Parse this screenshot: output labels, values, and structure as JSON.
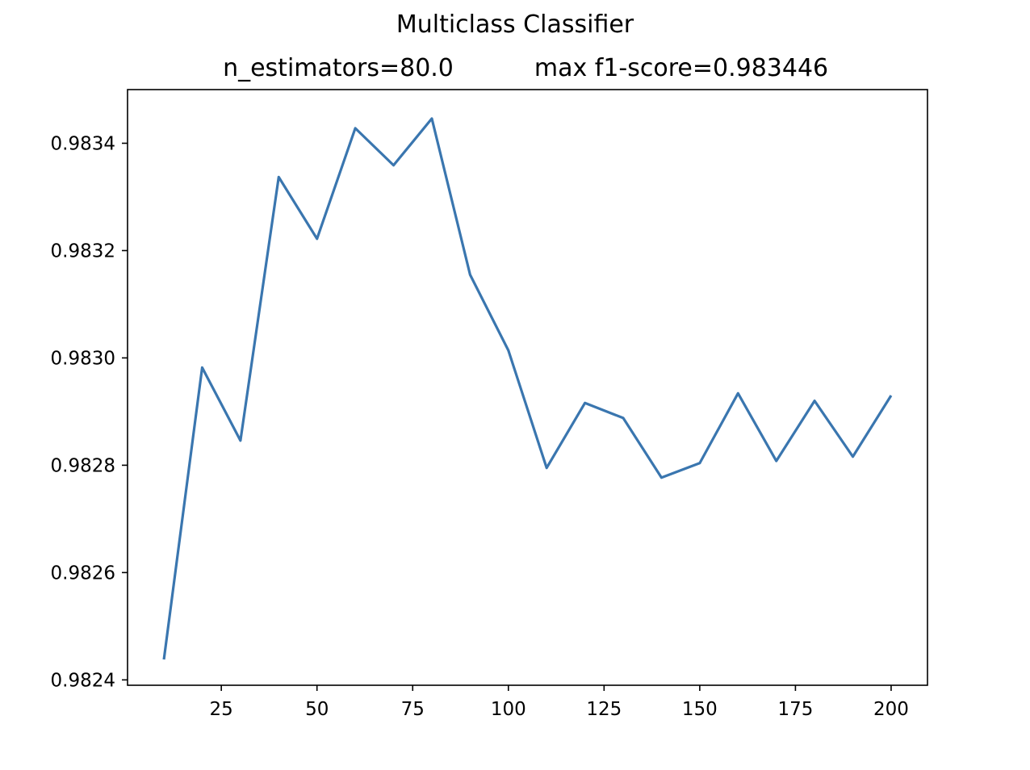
{
  "figure": {
    "suptitle": "Multiclass Classifier",
    "subtitle_left": "n_estimators=80.0",
    "subtitle_right": "max f1-score=0.983446"
  },
  "chart_data": {
    "type": "line",
    "title": "Multiclass Classifier",
    "subtitle": "n_estimators=80.0       max f1-score=0.983446",
    "xlabel": "",
    "ylabel": "",
    "xlim": [
      0.5,
      209.5
    ],
    "ylim": [
      0.98239,
      0.9835
    ],
    "xticks": [
      25,
      50,
      75,
      100,
      125,
      150,
      175,
      200
    ],
    "xtick_labels": [
      "25",
      "50",
      "75",
      "100",
      "125",
      "150",
      "175",
      "200"
    ],
    "yticks": [
      0.9824,
      0.9826,
      0.9828,
      0.983,
      0.9832,
      0.9834
    ],
    "ytick_labels": [
      "0.9824",
      "0.9826",
      "0.9828",
      "0.9830",
      "0.9832",
      "0.9834"
    ],
    "grid": false,
    "series": [
      {
        "color": "#3a76af",
        "x": [
          10,
          20,
          30,
          40,
          50,
          60,
          70,
          80,
          90,
          100,
          110,
          120,
          130,
          140,
          150,
          160,
          170,
          180,
          190,
          200
        ],
        "values": [
          0.982438,
          0.982982,
          0.982846,
          0.983337,
          0.983222,
          0.983428,
          0.983359,
          0.983446,
          0.983155,
          0.983014,
          0.982795,
          0.982916,
          0.982888,
          0.982777,
          0.982804,
          0.982934,
          0.982808,
          0.98292,
          0.982816,
          0.98293
        ]
      }
    ]
  }
}
